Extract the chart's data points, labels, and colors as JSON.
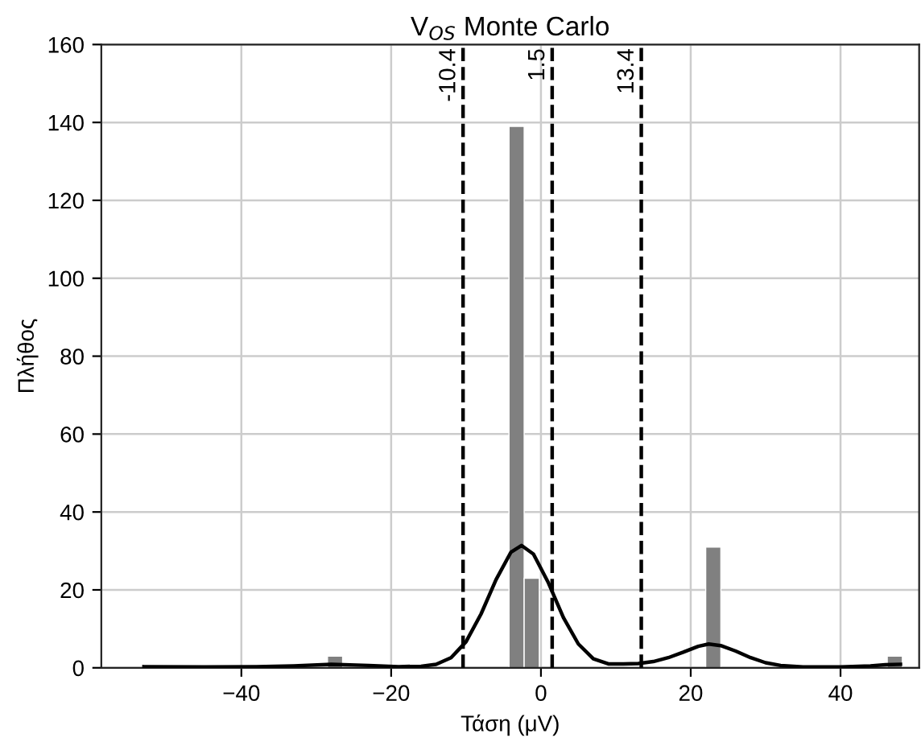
{
  "chart_data": {
    "type": "histogram",
    "title": "V$_{OS}$ Monte Carlo",
    "xlabel": "Τάση (μV)",
    "ylabel": "Πλήθος",
    "bins": [
      -28.5,
      -26.48,
      -24.46,
      -22.44,
      -20.42,
      -18.4,
      -16.38,
      -14.36,
      -12.34,
      -10.32,
      -8.3,
      -6.28,
      -4.26,
      -2.24,
      -0.22,
      1.8,
      3.82,
      5.84,
      7.86,
      9.88,
      11.9,
      13.92,
      15.94,
      17.96,
      19.98,
      22.0,
      24.02,
      26.04,
      28.06,
      30.08,
      32.1,
      34.12,
      36.14,
      38.16,
      40.18,
      42.2,
      44.22,
      46.24,
      48.26
    ],
    "values": [
      3,
      0,
      0,
      0,
      0,
      0,
      0,
      0,
      0,
      0,
      0,
      0,
      139,
      23,
      0,
      0,
      0,
      0,
      0,
      0,
      0,
      0,
      0,
      0,
      0,
      31,
      0,
      0,
      0,
      0,
      0,
      0,
      0,
      0,
      0,
      0,
      0,
      3
    ],
    "color": "#808080",
    "series": [
      {
        "type": "line",
        "color": "#000000",
        "x": [
          -53,
          -45,
          -38,
          -33,
          -28,
          -23,
          -19,
          -16,
          -14,
          -12,
          -10,
          -8,
          -6,
          -4,
          -2.6,
          -1,
          1,
          3,
          5,
          7,
          9,
          11,
          13,
          15,
          17,
          19,
          21,
          22.4,
          24,
          26,
          28,
          30,
          32,
          35,
          40,
          44,
          46,
          48
        ],
        "values": [
          0.3,
          0.2,
          0.3,
          0.5,
          0.9,
          0.6,
          0.3,
          0.4,
          0.9,
          2.6,
          6.7,
          13.8,
          22.6,
          29.7,
          31.4,
          29.2,
          21.8,
          12.9,
          6.1,
          2.3,
          1.0,
          1.0,
          1.1,
          1.6,
          2.6,
          4.0,
          5.5,
          6.1,
          5.7,
          4.3,
          2.6,
          1.3,
          0.6,
          0.2,
          0.2,
          0.5,
          0.8,
          0.9
        ]
      }
    ],
    "ref_lines": [
      {
        "axis": "x",
        "value": -10.4,
        "label": "-10.4",
        "color": "#000000",
        "line_style": "dashed"
      },
      {
        "axis": "x",
        "value": 1.5,
        "label": "1.5",
        "color": "#000000",
        "line_style": "dashed"
      },
      {
        "axis": "x",
        "value": 13.4,
        "label": "13.4",
        "color": "#000000",
        "line_style": "dashed"
      }
    ],
    "xlim": [
      -58.7,
      50.5
    ],
    "ylim": [
      0,
      160
    ],
    "xticks": [
      {
        "value": -40,
        "label": "−40"
      },
      {
        "value": -20,
        "label": "−20"
      },
      0,
      20,
      40
    ],
    "yticks": [
      0,
      20,
      40,
      60,
      80,
      100,
      120,
      140,
      160
    ],
    "grid": true
  }
}
